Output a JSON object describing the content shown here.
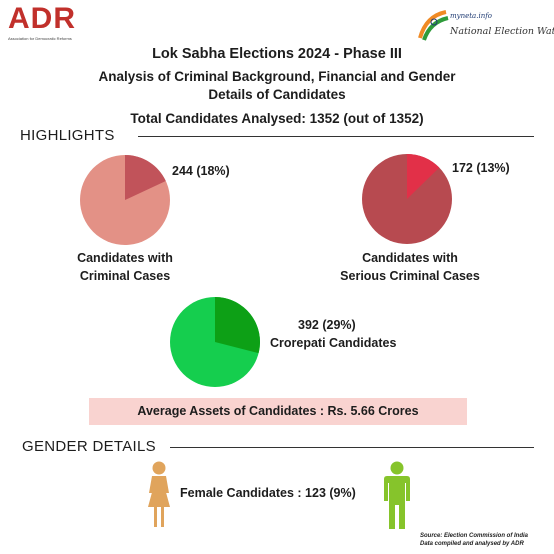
{
  "logos": {
    "adr": {
      "text": "ADR",
      "subtext": "Association for Democratic Reforms"
    },
    "new": {
      "myneta": "myneta.info",
      "text": "National Election Watch"
    }
  },
  "header": {
    "title": "Lok Sabha Elections 2024 - Phase III",
    "subtitle_line1": "Analysis of Criminal Background, Financial and Gender",
    "subtitle_line2": "Details of Candidates",
    "total": "Total Candidates Analysed: 1352 (out of 1352)"
  },
  "sections": {
    "highlights": "HIGHLIGHTS",
    "gender": "GENDER DETAILS"
  },
  "colors": {
    "criminal_rest": "#e39186",
    "criminal_slice": "#c1535a",
    "serious_rest": "#b74a50",
    "serious_slice": "#e23048",
    "crorepati_rest": "#15ce4e",
    "crorepati_slice": "#0da016",
    "female_icon": "#e0a45c",
    "male_icon": "#86c42b",
    "avg_box": "#f9d3d0"
  },
  "chart_data": [
    {
      "type": "pie",
      "slice_label": "244 (18%)",
      "caption_line1": "Candidates with",
      "caption_line2": "Criminal Cases",
      "total": 1352,
      "slices": [
        {
          "value": 244,
          "percent": 18
        },
        {
          "value": 1108
        }
      ]
    },
    {
      "type": "pie",
      "slice_label": "172 (13%)",
      "caption_line1": "Candidates with",
      "caption_line2": "Serious Criminal Cases",
      "total": 1352,
      "slices": [
        {
          "value": 172,
          "percent": 13
        },
        {
          "value": 1180
        }
      ]
    },
    {
      "type": "pie",
      "slice_label": "392 (29%)",
      "caption_line1": "Crorepati Candidates",
      "total": 1352,
      "slices": [
        {
          "value": 392,
          "percent": 29
        },
        {
          "value": 960
        }
      ]
    }
  ],
  "average_assets": "Average Assets of Candidates : Rs. 5.66 Crores",
  "gender": {
    "female_label": "Female Candidates : 123 (9%)",
    "female_count": 123,
    "female_percent": 9,
    "female_icon": "female-person-icon",
    "male_icon": "male-person-icon"
  },
  "source": {
    "line1": "Source: Election Commission of India",
    "line2": "Data compiled and analysed by ADR"
  }
}
